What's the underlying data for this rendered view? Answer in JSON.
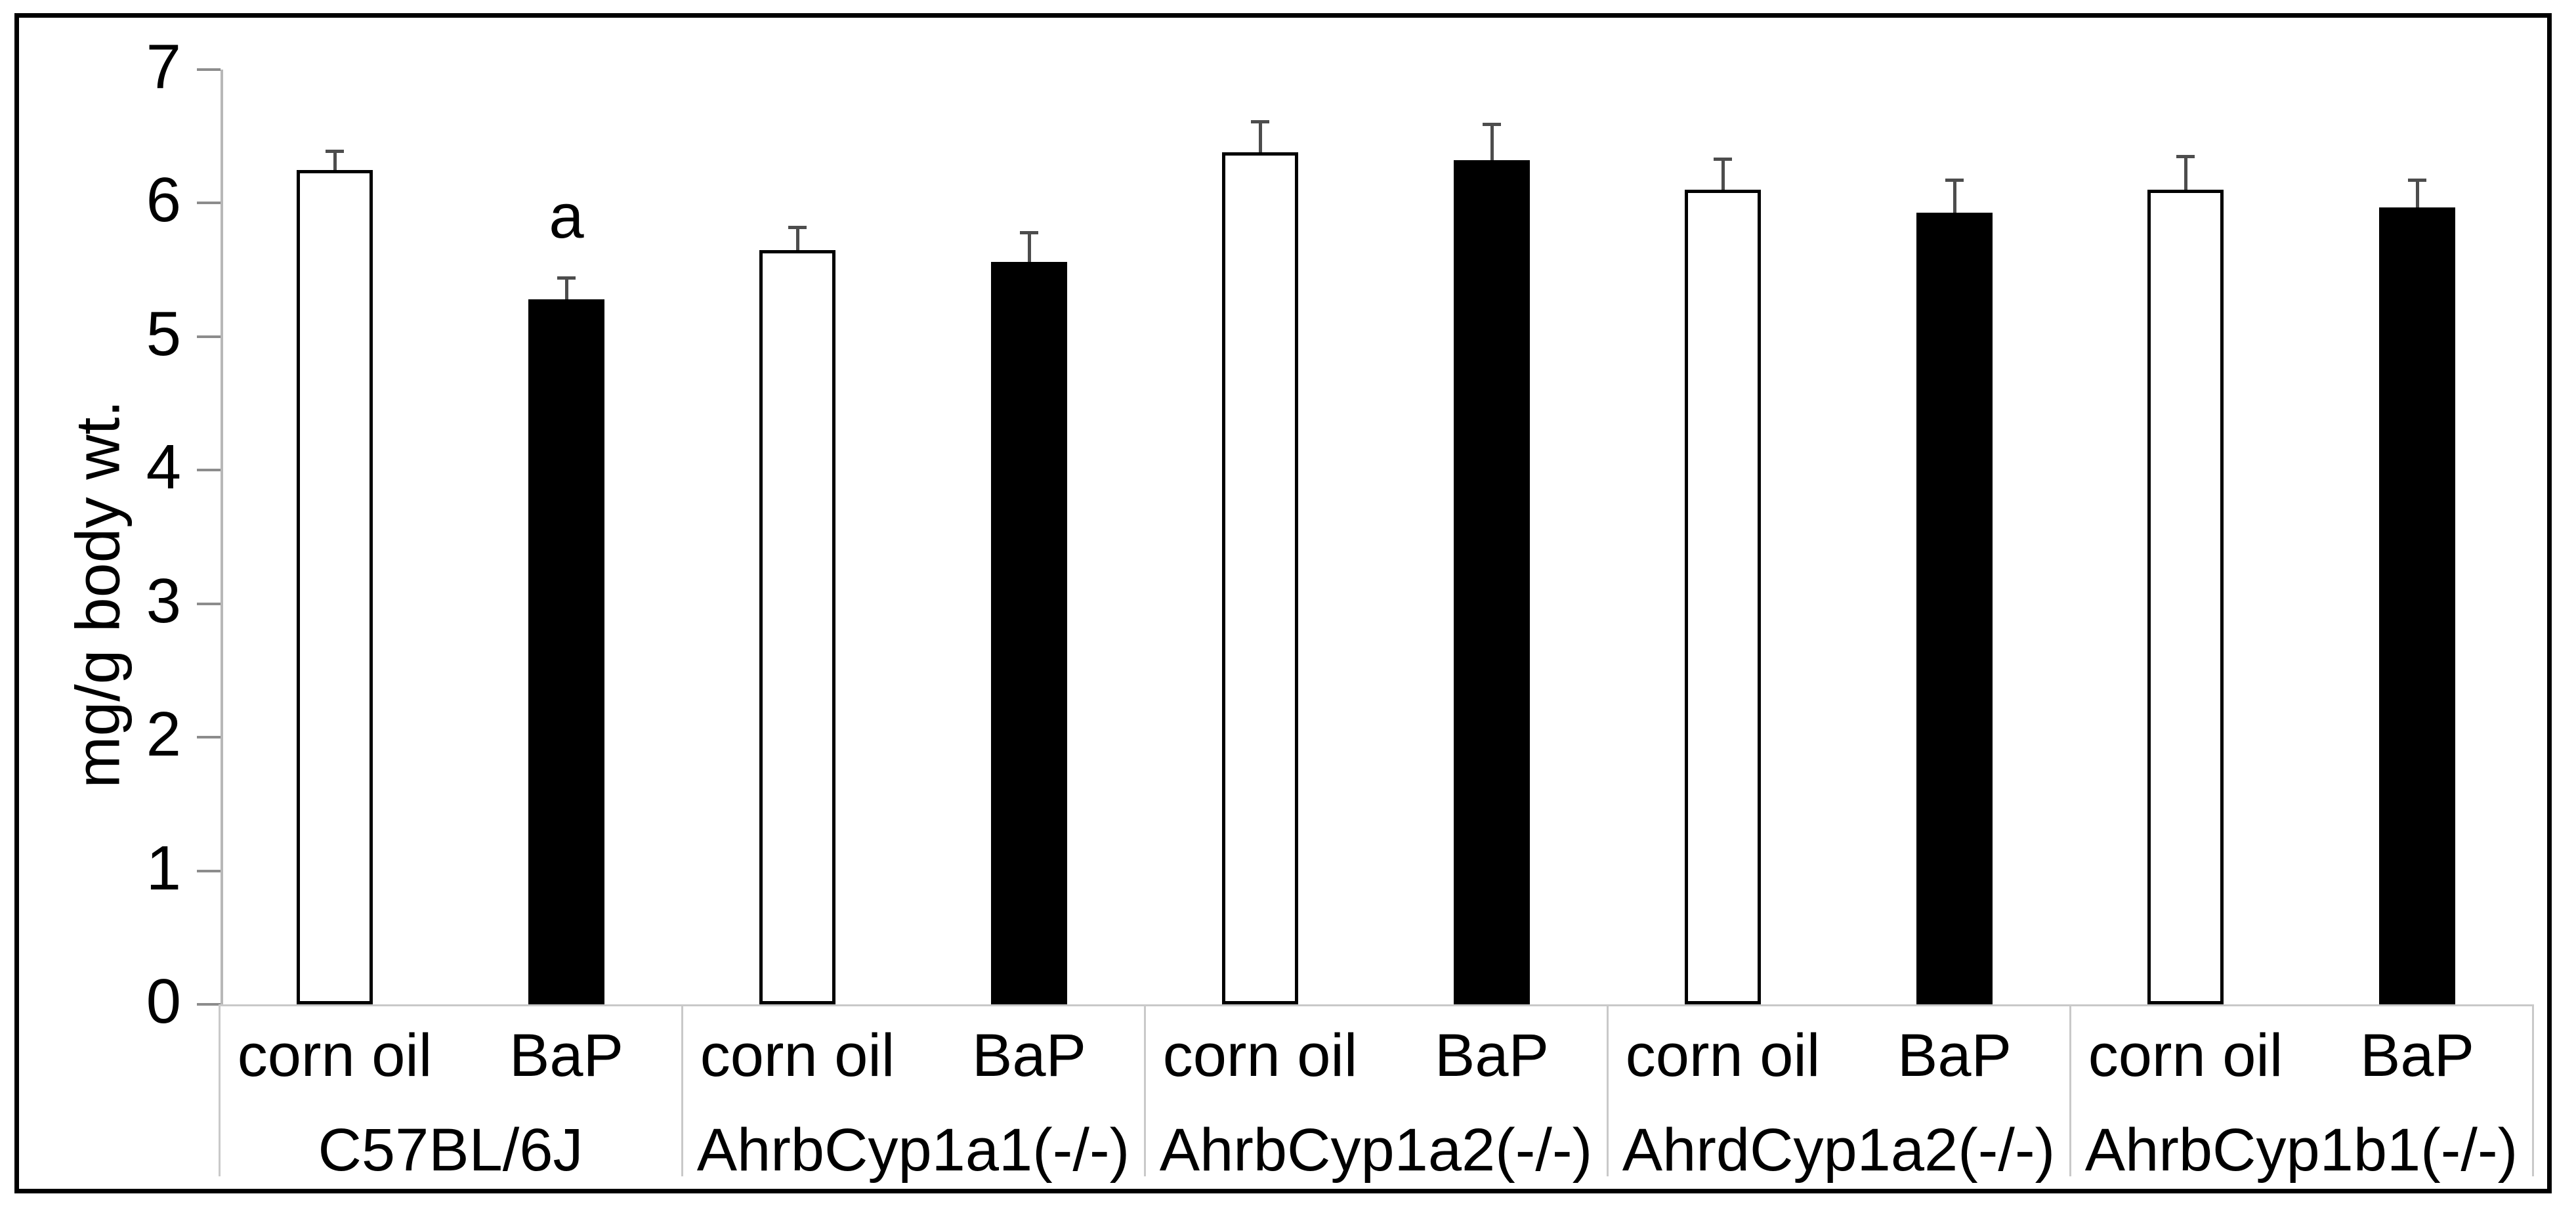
{
  "figure": {
    "background": "#ffffff",
    "border_color": "#000000"
  },
  "chart_data": {
    "type": "bar",
    "title": "",
    "xlabel": "",
    "ylabel": "mg/g body wt.",
    "ylim": [
      0,
      7
    ],
    "yticks": [
      0,
      1,
      2,
      3,
      4,
      5,
      6,
      7
    ],
    "grid": false,
    "legend_position": "none",
    "series": [
      {
        "name": "corn oil",
        "fill": "#ffffff",
        "outline": "#000000"
      },
      {
        "name": "BaP",
        "fill": "#000000",
        "outline": "#000000"
      }
    ],
    "categories": [
      "C57BL/6J",
      "AhrbCyp1a1(-/-)",
      "AhrbCyp1a2(-/-)",
      "AhrdCyp1a2(-/-)",
      "AhrbCyp1b1(-/-)"
    ],
    "groups": [
      {
        "strain": "C57BL/6J",
        "bars": [
          {
            "treatment": "corn oil",
            "value": 6.25,
            "error": 0.14
          },
          {
            "treatment": "BaP",
            "value": 5.28,
            "error": 0.16
          }
        ]
      },
      {
        "strain": "AhrbCyp1a1(-/-)",
        "bars": [
          {
            "treatment": "corn oil",
            "value": 5.65,
            "error": 0.17
          },
          {
            "treatment": "BaP",
            "value": 5.56,
            "error": 0.22
          }
        ]
      },
      {
        "strain": "AhrbCyp1a2(-/-)",
        "bars": [
          {
            "treatment": "corn oil",
            "value": 6.38,
            "error": 0.23
          },
          {
            "treatment": "BaP",
            "value": 6.32,
            "error": 0.27
          }
        ]
      },
      {
        "strain": "AhrdCyp1a2(-/-)",
        "bars": [
          {
            "treatment": "corn oil",
            "value": 6.1,
            "error": 0.23
          },
          {
            "treatment": "BaP",
            "value": 5.93,
            "error": 0.24
          }
        ]
      },
      {
        "strain": "AhrbCyp1b1(-/-)",
        "bars": [
          {
            "treatment": "corn oil",
            "value": 6.1,
            "error": 0.25
          },
          {
            "treatment": "BaP",
            "value": 5.97,
            "error": 0.2
          }
        ]
      }
    ],
    "annotations": [
      {
        "text": "a",
        "group_index": 0,
        "bar_index": 1,
        "y_value": 5.9
      }
    ],
    "colors": {
      "error_bar": "#4d4d4d",
      "axis_line": "#b7b7b7",
      "tick_mark": "#8c8c8c",
      "separator": "#c9c9c9",
      "baseline": "#c9c9c9",
      "text": "#000000",
      "bar_outline": "#000000"
    }
  }
}
